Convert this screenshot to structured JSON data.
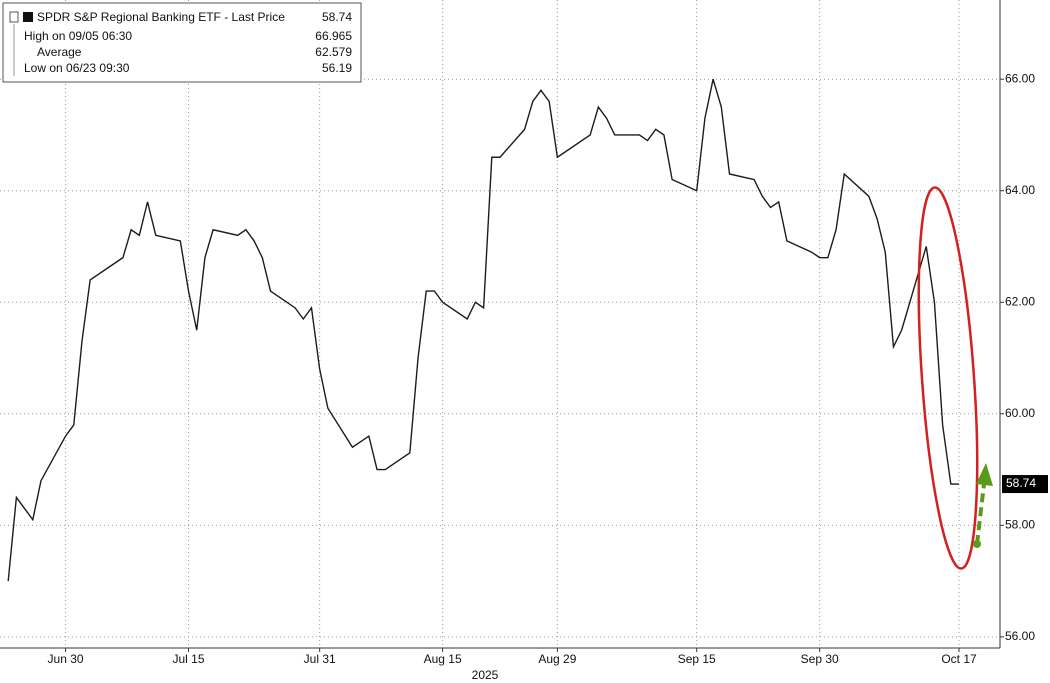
{
  "chart_data": {
    "type": "line",
    "legend": {
      "title": "SPDR S&P Regional Banking ETF - Last Price",
      "last_price": 58.74,
      "high_label": "High on 09/05 06:30",
      "high": 66.965,
      "average_label": "Average",
      "average": 62.579,
      "low_label": "Low on 06/23 09:30",
      "low": 56.19
    },
    "x_axis_label": "2025",
    "x": [
      "2025-06-23",
      "2025-06-24",
      "2025-06-25",
      "2025-06-26",
      "2025-06-27",
      "2025-06-30",
      "2025-07-01",
      "2025-07-02",
      "2025-07-03",
      "2025-07-07",
      "2025-07-08",
      "2025-07-09",
      "2025-07-10",
      "2025-07-11",
      "2025-07-14",
      "2025-07-15",
      "2025-07-16",
      "2025-07-17",
      "2025-07-18",
      "2025-07-21",
      "2025-07-22",
      "2025-07-23",
      "2025-07-24",
      "2025-07-25",
      "2025-07-28",
      "2025-07-29",
      "2025-07-30",
      "2025-07-31",
      "2025-08-01",
      "2025-08-04",
      "2025-08-05",
      "2025-08-06",
      "2025-08-07",
      "2025-08-08",
      "2025-08-11",
      "2025-08-12",
      "2025-08-13",
      "2025-08-14",
      "2025-08-15",
      "2025-08-18",
      "2025-08-19",
      "2025-08-20",
      "2025-08-21",
      "2025-08-22",
      "2025-08-25",
      "2025-08-26",
      "2025-08-27",
      "2025-08-28",
      "2025-08-29",
      "2025-09-02",
      "2025-09-03",
      "2025-09-04",
      "2025-09-05",
      "2025-09-08",
      "2025-09-09",
      "2025-09-10",
      "2025-09-11",
      "2025-09-12",
      "2025-09-15",
      "2025-09-16",
      "2025-09-17",
      "2025-09-18",
      "2025-09-19",
      "2025-09-22",
      "2025-09-23",
      "2025-09-24",
      "2025-09-25",
      "2025-09-26",
      "2025-09-29",
      "2025-09-30",
      "2025-10-01",
      "2025-10-02",
      "2025-10-03",
      "2025-10-06",
      "2025-10-07",
      "2025-10-08",
      "2025-10-09",
      "2025-10-10",
      "2025-10-13",
      "2025-10-14",
      "2025-10-15",
      "2025-10-16",
      "2025-10-17"
    ],
    "series": [
      {
        "name": "SPDR S&P Regional Banking ETF",
        "color": "#1c1c1c",
        "values": [
          57.0,
          58.5,
          58.3,
          58.1,
          58.8,
          59.6,
          59.8,
          61.3,
          62.4,
          62.8,
          63.3,
          63.2,
          63.8,
          63.2,
          63.1,
          62.2,
          61.5,
          62.8,
          63.3,
          63.2,
          63.3,
          63.1,
          62.8,
          62.2,
          61.9,
          61.7,
          61.9,
          60.8,
          60.1,
          59.4,
          59.5,
          59.6,
          59.0,
          59.0,
          59.3,
          61.0,
          62.2,
          62.2,
          62.0,
          61.7,
          62.0,
          61.9,
          64.6,
          64.6,
          65.1,
          65.6,
          65.8,
          65.6,
          64.6,
          65.0,
          65.5,
          65.3,
          65.0,
          65.0,
          64.9,
          65.1,
          65.0,
          64.2,
          64.0,
          65.3,
          66.0,
          65.5,
          64.3,
          64.2,
          63.9,
          63.7,
          63.8,
          63.1,
          62.9,
          62.8,
          62.8,
          63.3,
          64.3,
          63.9,
          63.5,
          62.9,
          61.2,
          61.5,
          63.0,
          62.0,
          59.8,
          58.74,
          58.74
        ]
      }
    ],
    "xlim": [
      "2025-06-22",
      "2025-10-22"
    ],
    "xticks": [
      {
        "value": "2025-06-30",
        "label": "Jun 30"
      },
      {
        "value": "2025-07-15",
        "label": "Jul 15"
      },
      {
        "value": "2025-07-31",
        "label": "Jul 31"
      },
      {
        "value": "2025-08-15",
        "label": "Aug 15"
      },
      {
        "value": "2025-08-29",
        "label": "Aug 29"
      },
      {
        "value": "2025-09-15",
        "label": "Sep 15"
      },
      {
        "value": "2025-09-30",
        "label": "Sep 30"
      },
      {
        "value": "2025-10-17",
        "label": "Oct 17"
      }
    ],
    "ylim": [
      55.8,
      67.42
    ],
    "yticks": [
      {
        "value": 56,
        "label": "56.00"
      },
      {
        "value": 58,
        "label": "58.00"
      },
      {
        "value": 60,
        "label": "60.00"
      },
      {
        "value": 62,
        "label": "62.00"
      },
      {
        "value": 64,
        "label": "64.00"
      },
      {
        "value": 66,
        "label": "66.00"
      }
    ],
    "grid": true
  }
}
